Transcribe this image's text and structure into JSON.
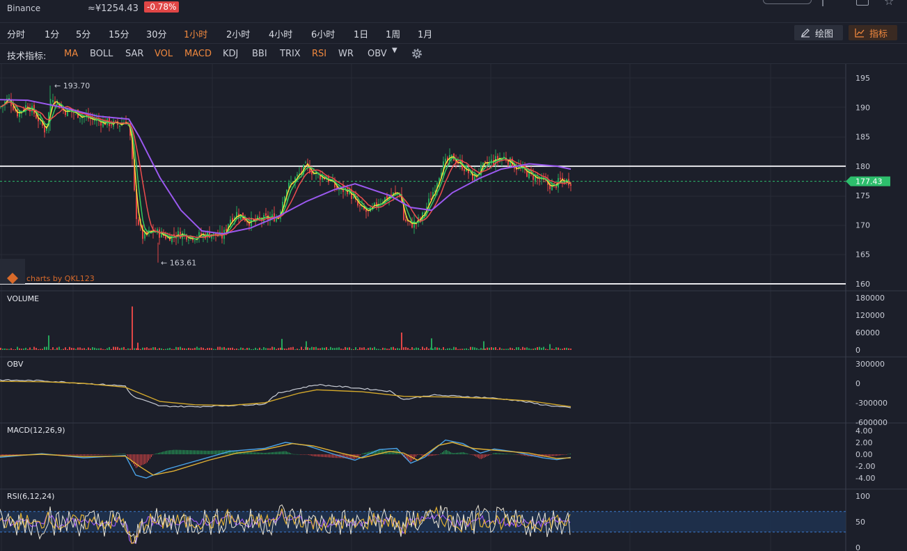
{
  "header": {
    "exchange": "Binance",
    "price": "≈¥1254.43",
    "change": "-0.78%"
  },
  "timeframes": [
    {
      "label": "分时",
      "active": false
    },
    {
      "label": "1分",
      "active": false
    },
    {
      "label": "5分",
      "active": false
    },
    {
      "label": "15分",
      "active": false
    },
    {
      "label": "30分",
      "active": false
    },
    {
      "label": "1小时",
      "active": true
    },
    {
      "label": "2小时",
      "active": false
    },
    {
      "label": "4小时",
      "active": false
    },
    {
      "label": "6小时",
      "active": false
    },
    {
      "label": "1日",
      "active": false
    },
    {
      "label": "1周",
      "active": false
    },
    {
      "label": "1月",
      "active": false
    }
  ],
  "tools": {
    "draw_label": "绘图",
    "indicator_label": "指标"
  },
  "indicator_bar": {
    "label": "技术指标:",
    "items": [
      {
        "label": "MA",
        "on": true
      },
      {
        "label": "BOLL",
        "on": false
      },
      {
        "label": "SAR",
        "on": false
      },
      {
        "label": "VOL",
        "on": true
      },
      {
        "label": "MACD",
        "on": true
      },
      {
        "label": "KDJ",
        "on": false
      },
      {
        "label": "BBI",
        "on": false
      },
      {
        "label": "TRIX",
        "on": false
      },
      {
        "label": "RSI",
        "on": true
      },
      {
        "label": "WR",
        "on": false
      },
      {
        "label": "OBV",
        "on": false
      }
    ]
  },
  "colors": {
    "up": "#26a65b",
    "down": "#e04646",
    "ma1": "#f5e23c",
    "ma2": "#36c95f",
    "ma3": "#ee4d4d",
    "ma4": "#9b59f0",
    "accent": "#f0883e",
    "obv_line": "#c9cdd6",
    "obv_ma": "#d4a92c",
    "macd_dif": "#4aa3e8",
    "macd_dea": "#e0b034",
    "rsi1": "#e9e4d6",
    "rsi2": "#e0b034",
    "rsi3": "#9b59f0"
  },
  "icons": {
    "draw": "pencil-icon",
    "indicator": "line-chart-icon",
    "settings": "gear-icon"
  },
  "chart_data": {
    "type": "candlestick",
    "main": {
      "y_ticks": [
        "195",
        "190",
        "185",
        "180",
        "175",
        "170",
        "165",
        "160"
      ],
      "ylim": [
        160,
        196
      ],
      "current_price_label": "177.43",
      "current_price": 177.43,
      "high_label": "← 193.70",
      "high": 193.7,
      "low_label": "← 163.61",
      "low": 163.61,
      "horizontal_lines": [
        180,
        160
      ],
      "watermark": "charts by QKL123",
      "path": [
        [
          0,
          190
        ],
        [
          12,
          191.5
        ],
        [
          25,
          189
        ],
        [
          40,
          190.5
        ],
        [
          55,
          188
        ],
        [
          65,
          186
        ],
        [
          75,
          192
        ],
        [
          90,
          189.5
        ],
        [
          110,
          189
        ],
        [
          130,
          188
        ],
        [
          150,
          187.5
        ],
        [
          170,
          187
        ],
        [
          183,
          188
        ],
        [
          188,
          184
        ],
        [
          195,
          172
        ],
        [
          205,
          168
        ],
        [
          220,
          169
        ],
        [
          240,
          168
        ],
        [
          260,
          168.5
        ],
        [
          280,
          168
        ],
        [
          300,
          168.5
        ],
        [
          320,
          168
        ],
        [
          330,
          171
        ],
        [
          340,
          172
        ],
        [
          360,
          170.5
        ],
        [
          380,
          171
        ],
        [
          400,
          171.5
        ],
        [
          410,
          176
        ],
        [
          425,
          178
        ],
        [
          440,
          180
        ],
        [
          455,
          178.5
        ],
        [
          470,
          178
        ],
        [
          485,
          176
        ],
        [
          500,
          176
        ],
        [
          515,
          173
        ],
        [
          530,
          172
        ],
        [
          545,
          174
        ],
        [
          560,
          175
        ],
        [
          575,
          175.5
        ],
        [
          580,
          171
        ],
        [
          590,
          170
        ],
        [
          605,
          171
        ],
        [
          620,
          175
        ],
        [
          635,
          180
        ],
        [
          650,
          181.5
        ],
        [
          665,
          180
        ],
        [
          680,
          178
        ],
        [
          695,
          180
        ],
        [
          710,
          181
        ],
        [
          725,
          181.5
        ],
        [
          740,
          180
        ],
        [
          755,
          179
        ],
        [
          770,
          178
        ],
        [
          785,
          177
        ],
        [
          795,
          176.5
        ],
        [
          805,
          177.5
        ],
        [
          820,
          177.43
        ]
      ],
      "ma_long_path": [
        [
          0,
          191.3
        ],
        [
          40,
          191.2
        ],
        [
          90,
          190
        ],
        [
          140,
          188.5
        ],
        [
          185,
          188
        ],
        [
          200,
          185
        ],
        [
          230,
          178
        ],
        [
          260,
          172.5
        ],
        [
          290,
          169
        ],
        [
          320,
          168.5
        ],
        [
          360,
          169.5
        ],
        [
          400,
          171.5
        ],
        [
          440,
          174
        ],
        [
          480,
          176
        ],
        [
          510,
          177
        ],
        [
          560,
          175
        ],
        [
          590,
          173
        ],
        [
          620,
          172.5
        ],
        [
          650,
          175.5
        ],
        [
          690,
          178
        ],
        [
          720,
          179.5
        ],
        [
          760,
          180.4
        ],
        [
          800,
          180
        ],
        [
          820,
          179.5
        ]
      ]
    },
    "volume": {
      "title": "VOLUME",
      "y_ticks": [
        "180000",
        "120000",
        "60000",
        "0"
      ],
      "ylim": [
        0,
        180000
      ],
      "baseline": 2000,
      "spikes": [
        {
          "x": 70,
          "v": 50000,
          "up": true
        },
        {
          "x": 190,
          "v": 150000,
          "up": false
        },
        {
          "x": 198,
          "v": 25000,
          "up": false
        },
        {
          "x": 405,
          "v": 38000,
          "up": true
        },
        {
          "x": 440,
          "v": 30000,
          "up": true
        },
        {
          "x": 577,
          "v": 60000,
          "up": false
        },
        {
          "x": 620,
          "v": 40000,
          "up": true
        },
        {
          "x": 695,
          "v": 30000,
          "up": true
        },
        {
          "x": 790,
          "v": 20000,
          "up": true
        }
      ]
    },
    "obv": {
      "title": "OBV",
      "y_ticks": [
        "300000",
        "0",
        "-300000",
        "-600000"
      ],
      "ylim": [
        -600000,
        300000
      ],
      "line": [
        [
          0,
          50000
        ],
        [
          60,
          40000
        ],
        [
          120,
          0
        ],
        [
          180,
          -40000
        ],
        [
          190,
          -200000
        ],
        [
          230,
          -350000
        ],
        [
          280,
          -360000
        ],
        [
          330,
          -340000
        ],
        [
          380,
          -320000
        ],
        [
          400,
          -150000
        ],
        [
          420,
          -100000
        ],
        [
          455,
          -20000
        ],
        [
          500,
          -60000
        ],
        [
          560,
          -120000
        ],
        [
          580,
          -250000
        ],
        [
          620,
          -180000
        ],
        [
          660,
          -200000
        ],
        [
          700,
          -220000
        ],
        [
          740,
          -260000
        ],
        [
          780,
          -330000
        ],
        [
          820,
          -380000
        ]
      ],
      "ma": [
        [
          0,
          30000
        ],
        [
          60,
          25000
        ],
        [
          120,
          0
        ],
        [
          180,
          -60000
        ],
        [
          230,
          -280000
        ],
        [
          280,
          -330000
        ],
        [
          330,
          -340000
        ],
        [
          380,
          -300000
        ],
        [
          430,
          -150000
        ],
        [
          455,
          -100000
        ],
        [
          520,
          -130000
        ],
        [
          580,
          -200000
        ],
        [
          640,
          -210000
        ],
        [
          700,
          -230000
        ],
        [
          760,
          -270000
        ],
        [
          820,
          -360000
        ]
      ]
    },
    "macd": {
      "title": "MACD(12,26,9)",
      "y_ticks": [
        "4.00",
        "2.00",
        "0.00",
        "-2.00",
        "-4.00"
      ],
      "ylim": [
        -4.6,
        4.6
      ],
      "dif": [
        [
          0,
          -0.5
        ],
        [
          60,
          0.1
        ],
        [
          120,
          -0.6
        ],
        [
          180,
          -0.2
        ],
        [
          195,
          -3.5
        ],
        [
          210,
          -4.0
        ],
        [
          240,
          -2.5
        ],
        [
          300,
          -0.5
        ],
        [
          330,
          0.5
        ],
        [
          380,
          1.0
        ],
        [
          410,
          2.0
        ],
        [
          440,
          1.5
        ],
        [
          480,
          0
        ],
        [
          510,
          -1.0
        ],
        [
          545,
          0.8
        ],
        [
          570,
          1.0
        ],
        [
          590,
          -1.5
        ],
        [
          610,
          -0.5
        ],
        [
          640,
          2.4
        ],
        [
          665,
          1.8
        ],
        [
          690,
          0.2
        ],
        [
          710,
          0.9
        ],
        [
          740,
          0.4
        ],
        [
          780,
          -0.6
        ],
        [
          800,
          -0.9
        ],
        [
          820,
          -0.5
        ]
      ],
      "dea": [
        [
          0,
          -0.3
        ],
        [
          60,
          0
        ],
        [
          120,
          -0.4
        ],
        [
          180,
          -0.3
        ],
        [
          200,
          -2.0
        ],
        [
          220,
          -3.5
        ],
        [
          250,
          -2.8
        ],
        [
          300,
          -1.0
        ],
        [
          340,
          0.2
        ],
        [
          380,
          0.8
        ],
        [
          420,
          1.8
        ],
        [
          450,
          1.4
        ],
        [
          490,
          0.2
        ],
        [
          520,
          -0.6
        ],
        [
          560,
          0.5
        ],
        [
          580,
          0.2
        ],
        [
          600,
          -1.0
        ],
        [
          630,
          1.5
        ],
        [
          650,
          2.0
        ],
        [
          680,
          1.0
        ],
        [
          720,
          0.6
        ],
        [
          760,
          0.2
        ],
        [
          800,
          -0.7
        ],
        [
          820,
          -0.6
        ]
      ]
    },
    "rsi": {
      "title": "RSI(6,12,24)",
      "y_ticks": [
        "100",
        "50",
        "0"
      ],
      "ylim": [
        0,
        100
      ],
      "band": [
        30,
        70
      ]
    }
  }
}
